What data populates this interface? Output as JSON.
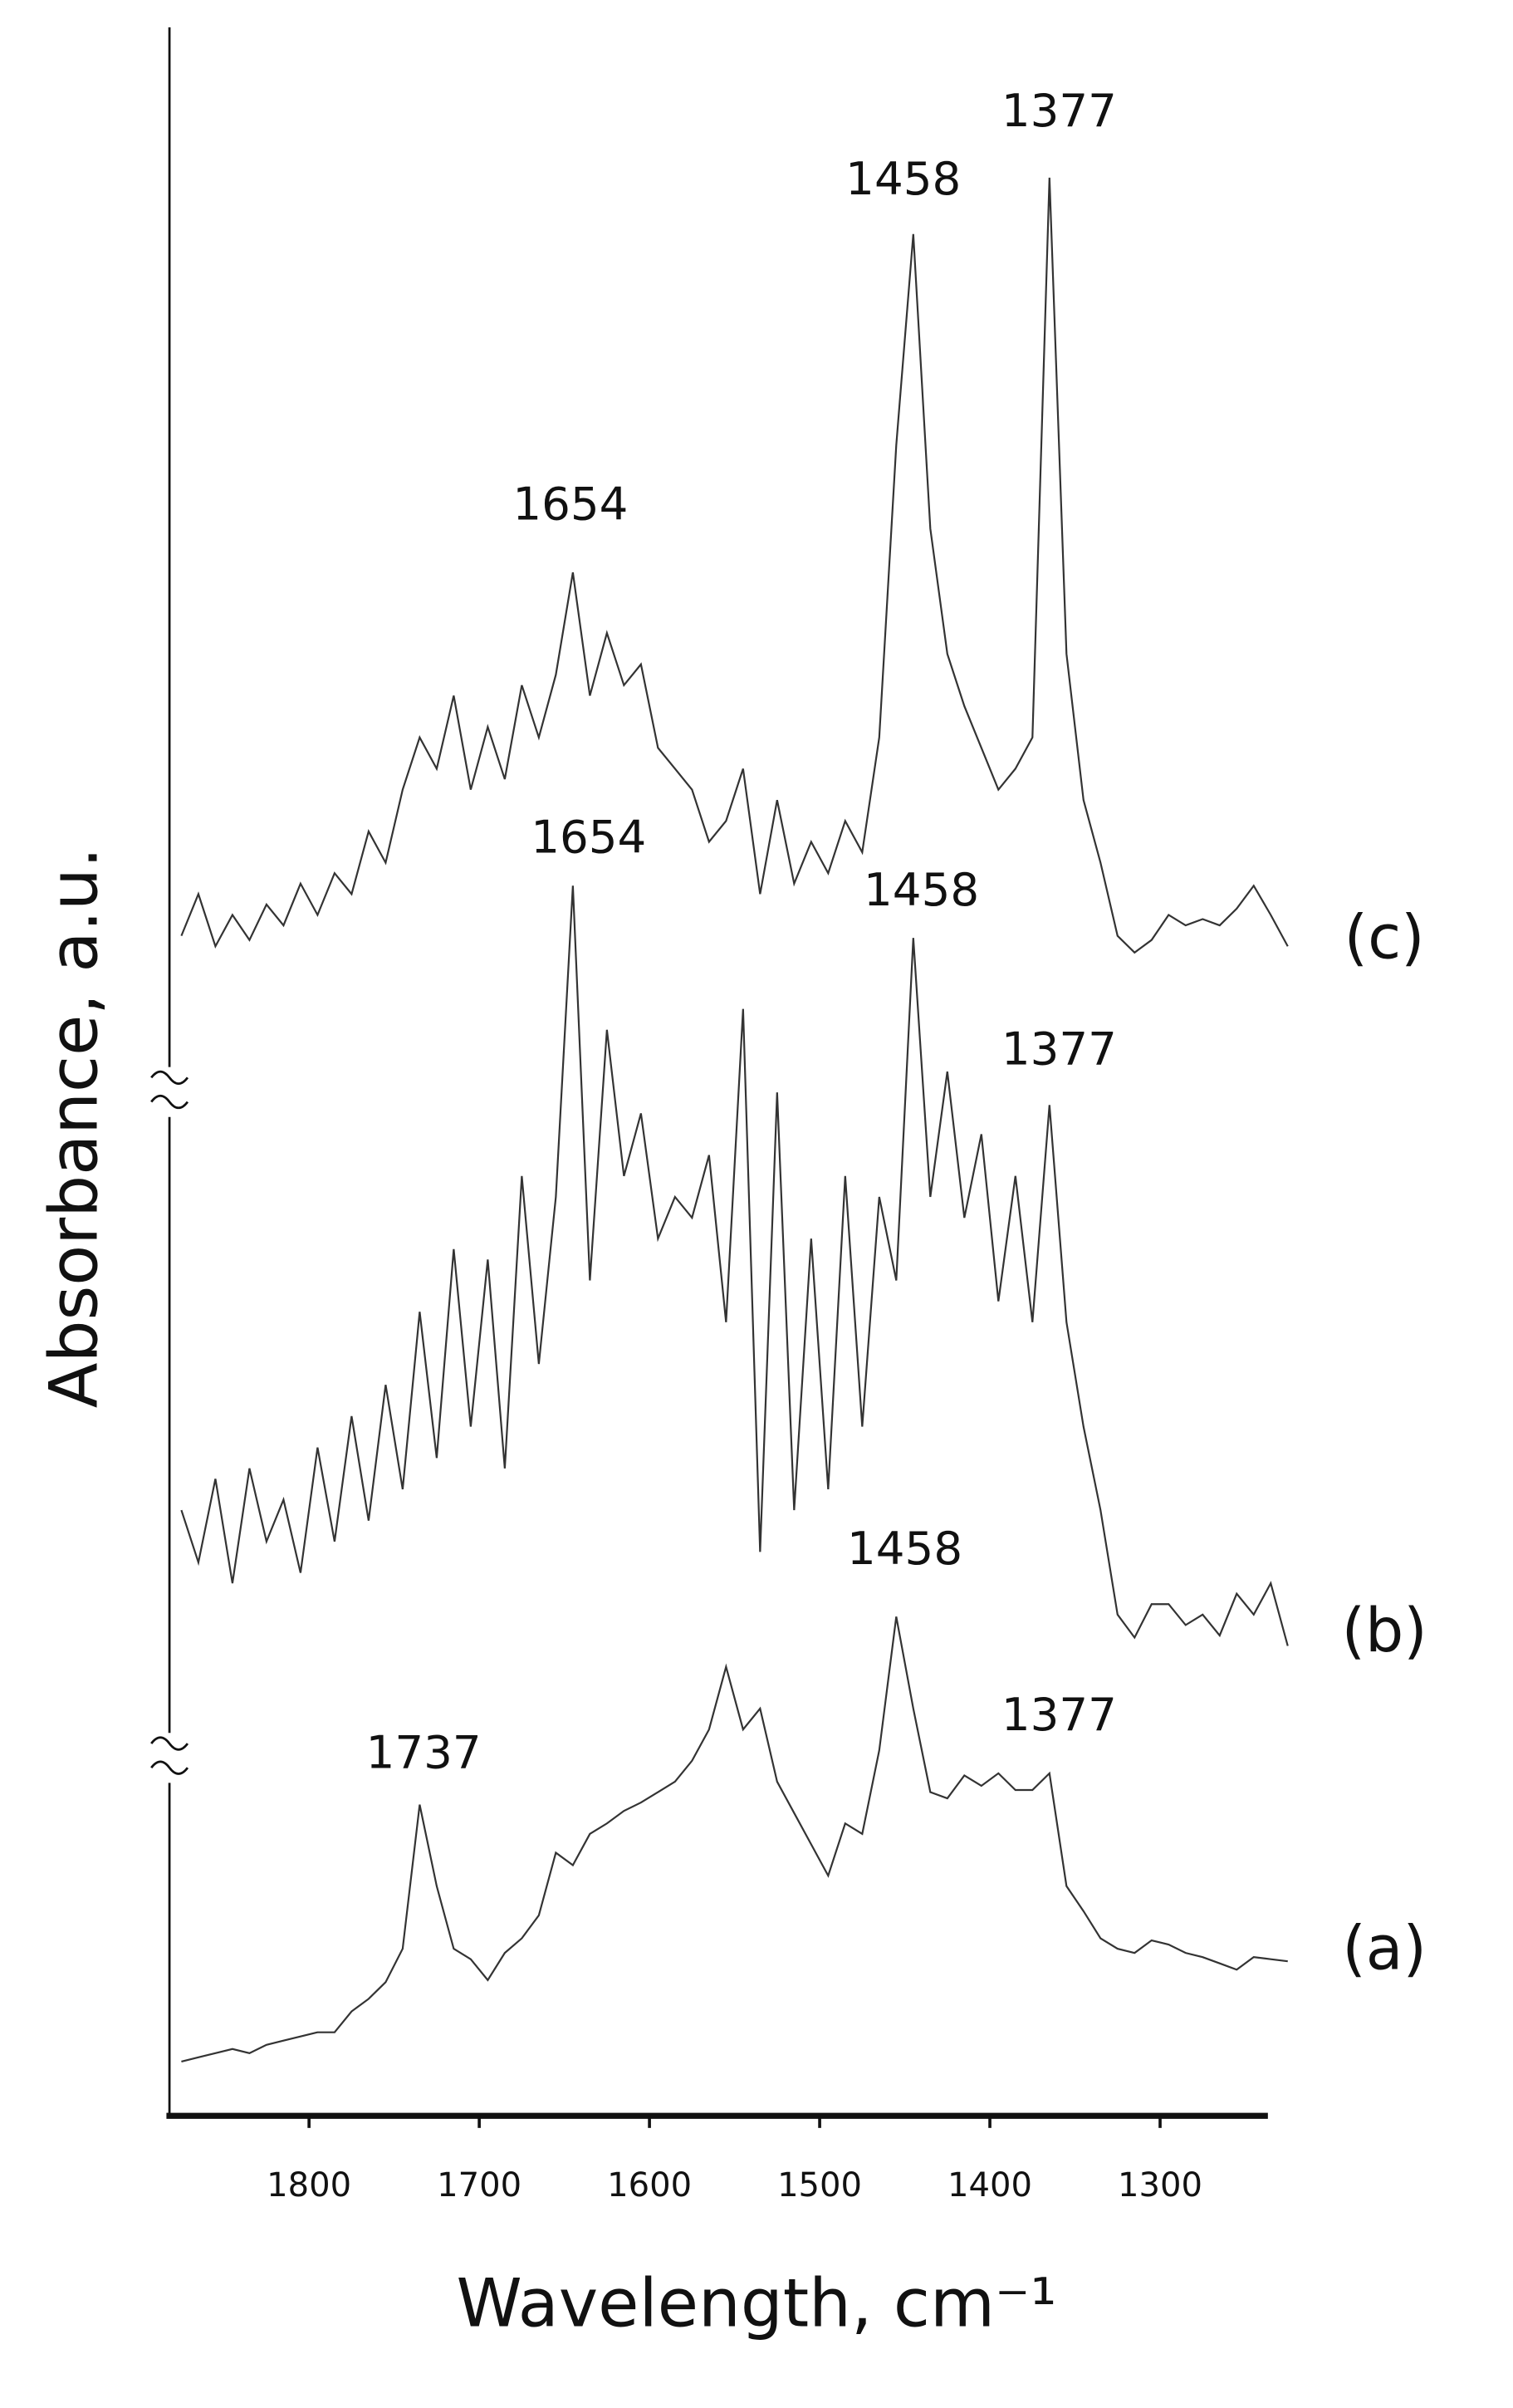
{
  "chart_data": {
    "type": "line",
    "xlabel": "Wavelength, cm⁻¹",
    "ylabel": "Absorbance, a.u.",
    "xlim": [
      1882,
      1222
    ],
    "ylim": [
      0,
      100
    ],
    "xticks": [
      1800,
      1700,
      1600,
      1500,
      1400,
      1300
    ],
    "yticks": [],
    "x": [
      1875,
      1865,
      1855,
      1845,
      1835,
      1825,
      1815,
      1805,
      1795,
      1785,
      1775,
      1765,
      1755,
      1745,
      1735,
      1725,
      1715,
      1705,
      1695,
      1685,
      1675,
      1665,
      1655,
      1645,
      1635,
      1625,
      1615,
      1605,
      1595,
      1585,
      1575,
      1565,
      1555,
      1545,
      1535,
      1525,
      1515,
      1505,
      1495,
      1485,
      1475,
      1465,
      1455,
      1445,
      1435,
      1425,
      1415,
      1405,
      1395,
      1385,
      1375,
      1365,
      1355,
      1345,
      1335,
      1325,
      1315,
      1305,
      1295,
      1285,
      1275,
      1265,
      1255,
      1245,
      1235,
      1225
    ],
    "series": [
      {
        "name": "(a)",
        "color": "#333333",
        "values": [
          2.6,
          2.8,
          3.0,
          3.2,
          3.0,
          3.4,
          3.6,
          3.8,
          4.0,
          4.0,
          5.0,
          5.6,
          6.4,
          8.0,
          14.9,
          11.0,
          8.0,
          7.5,
          6.5,
          7.8,
          8.5,
          9.6,
          12.6,
          12.0,
          13.5,
          14.0,
          14.6,
          15.0,
          15.5,
          16.0,
          17.0,
          18.5,
          21.5,
          18.5,
          19.5,
          16.0,
          14.5,
          13.0,
          11.5,
          14.0,
          13.5,
          17.5,
          23.9,
          19.5,
          15.5,
          15.2,
          16.3,
          15.8,
          16.4,
          15.6,
          15.6,
          16.4,
          11.0,
          9.8,
          8.5,
          8.0,
          7.8,
          8.4,
          8.2,
          7.8,
          7.6,
          7.3,
          7.0,
          7.6,
          7.5,
          7.4
        ]
      },
      {
        "name": "(b)",
        "color": "#333333",
        "values": [
          29.0,
          26.5,
          30.5,
          25.5,
          31.0,
          27.5,
          29.5,
          26.0,
          32.0,
          27.5,
          33.5,
          28.5,
          35.0,
          30.0,
          38.5,
          31.5,
          41.5,
          33.0,
          41.0,
          31.0,
          45.0,
          36.0,
          44.0,
          58.9,
          40.0,
          52.0,
          45.0,
          48.0,
          42.0,
          44.0,
          43.0,
          46.0,
          38.0,
          53.0,
          27.0,
          49.0,
          29.0,
          42.0,
          30.0,
          45.0,
          33.0,
          44.0,
          40.0,
          56.4,
          44.0,
          50.0,
          43.0,
          47.0,
          39.0,
          45.0,
          38.0,
          48.4,
          38.0,
          33.0,
          29.0,
          24.0,
          22.9,
          24.5,
          24.5,
          23.5,
          24.0,
          23.0,
          25.0,
          24.0,
          25.5,
          22.5
        ]
      },
      {
        "name": "(c)",
        "color": "#333333",
        "values": [
          56.5,
          58.5,
          56.0,
          57.5,
          56.3,
          58.0,
          57.0,
          59.0,
          57.5,
          59.5,
          58.5,
          61.5,
          60.0,
          63.5,
          66.0,
          64.5,
          68.0,
          63.5,
          66.5,
          64.0,
          68.5,
          66.0,
          69.0,
          73.9,
          68.0,
          71.0,
          68.5,
          69.5,
          65.5,
          64.5,
          63.5,
          61.0,
          62.0,
          64.5,
          58.5,
          63.0,
          59.0,
          61.0,
          59.5,
          62.0,
          60.5,
          66.0,
          80.0,
          90.1,
          76.0,
          70.0,
          67.5,
          65.5,
          63.5,
          64.5,
          66.0,
          92.8,
          70.0,
          63.0,
          60.0,
          56.5,
          55.7,
          56.3,
          57.5,
          57.0,
          57.3,
          57.0,
          57.8,
          58.9,
          57.5,
          56.0
        ]
      }
    ],
    "annotations": [
      {
        "text": "1737",
        "series": 0
      },
      {
        "text": "1458",
        "series": 0
      },
      {
        "text": "1377",
        "series": 0
      },
      {
        "text": "1654",
        "series": 1
      },
      {
        "text": "1458",
        "series": 1
      },
      {
        "text": "1377",
        "series": 1
      },
      {
        "text": "1654",
        "series": 2
      },
      {
        "text": "1458",
        "series": 2
      },
      {
        "text": "1377",
        "series": 2
      }
    ]
  }
}
